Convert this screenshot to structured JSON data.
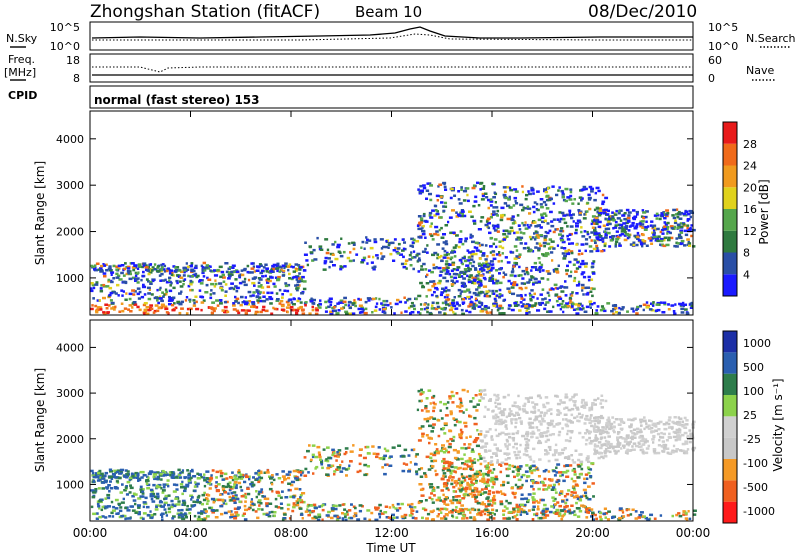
{
  "header": {
    "title": "Zhongshan Station (fitACF)",
    "beam": "Beam 10",
    "date": "08/Dec/2010"
  },
  "top_panel": {
    "nsky_label": "N.Sky",
    "nsearch_label": "N.Search",
    "left_ticks": [
      "10^5",
      "10^0"
    ],
    "right_ticks": [
      "10^5",
      "10^0"
    ],
    "freq_label_1": "Freq.",
    "freq_label_2": "[MHz]",
    "freq_ticks": [
      "18",
      "8"
    ],
    "nave_label": "Nave",
    "nave_ticks": [
      "60",
      "0"
    ],
    "cpid_label": "CPID",
    "cpid_value": "normal (fast stereo) 153"
  },
  "colors": {
    "power_scale": [
      "#1a1aff",
      "#2a4fa6",
      "#2f7a3f",
      "#55a64b",
      "#e0d21c",
      "#f09a1e",
      "#f06a1a",
      "#e81a1a"
    ],
    "velocity_scale": [
      "#ff1a1a",
      "#f06020",
      "#f59a26",
      "#c8c8c8",
      "#d0d0d0",
      "#8cd24b",
      "#2e7d4b",
      "#2a5fb0",
      "#1c2fa6"
    ]
  },
  "chart_data": [
    {
      "type": "heatmap",
      "title": "",
      "ylabel": "Slant Range [km]",
      "xlabel": "Time UT",
      "x_ticks": [
        "00:00",
        "04:00",
        "08:00",
        "12:00",
        "16:00",
        "20:00",
        "00:00"
      ],
      "y_ticks": [
        "1000",
        "2000",
        "3000",
        "4000"
      ],
      "ylim": [
        200,
        4600
      ],
      "xlim_hours": [
        0,
        24
      ],
      "colorbar": {
        "label": "Power [dB]",
        "ticks": [
          "4",
          "8",
          "12",
          "16",
          "20",
          "24",
          "28"
        ]
      }
    },
    {
      "type": "heatmap",
      "title": "",
      "ylabel": "Slant Range [km]",
      "xlabel": "Time UT",
      "x_ticks": [
        "00:00",
        "04:00",
        "08:00",
        "12:00",
        "16:00",
        "20:00",
        "00:00"
      ],
      "y_ticks": [
        "1000",
        "2000",
        "3000",
        "4000"
      ],
      "ylim": [
        200,
        4600
      ],
      "xlim_hours": [
        0,
        24
      ],
      "colorbar": {
        "label": "Velocity [m s⁻¹]",
        "ticks": [
          "1000",
          "500",
          "100",
          "25",
          "-25",
          "-100",
          "-500",
          "-1000"
        ]
      }
    }
  ]
}
